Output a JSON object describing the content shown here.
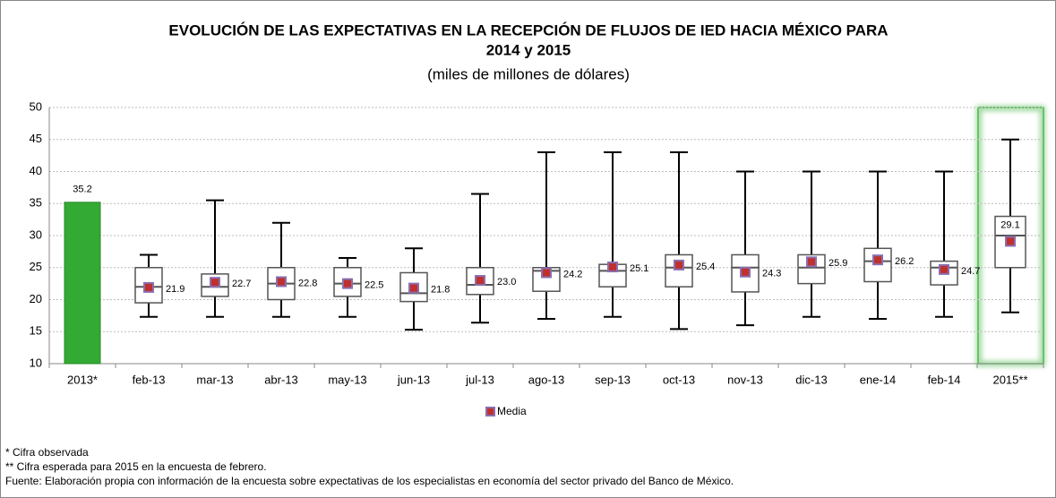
{
  "chart_data": {
    "type": "box",
    "title": [
      "EVOLUCIÓN DE LAS EXPECTATIVAS EN LA RECEPCIÓN DE FLUJOS DE IED HACIA MÉXICO PARA",
      "2014 y 2015"
    ],
    "subtitle": "(miles de millones de dólares)",
    "categories": [
      "2013*",
      "feb-13",
      "mar-13",
      "abr-13",
      "may-13",
      "jun-13",
      "jul-13",
      "ago-13",
      "sep-13",
      "oct-13",
      "nov-13",
      "dic-13",
      "ene-14",
      "feb-14",
      "2015**"
    ],
    "bar": {
      "color": "#33aa33",
      "values": [
        35.2,
        null,
        null,
        null,
        null,
        null,
        null,
        null,
        null,
        null,
        null,
        null,
        null,
        null,
        null
      ]
    },
    "min": [
      null,
      17.3,
      17.3,
      17.3,
      17.3,
      15.3,
      16.4,
      17,
      17.3,
      15.4,
      16,
      17.3,
      17,
      17.3,
      18
    ],
    "q1": [
      null,
      19.5,
      20.5,
      20,
      20.5,
      19.7,
      20.8,
      21.3,
      22,
      22,
      21.2,
      22.5,
      22.8,
      22.3,
      25
    ],
    "median": [
      null,
      22,
      22,
      22.5,
      22.5,
      21,
      22.3,
      24.5,
      24.5,
      25,
      25,
      25,
      26,
      25,
      30
    ],
    "q3": [
      null,
      25,
      24,
      25,
      25,
      24.2,
      25,
      25,
      25.5,
      27,
      27,
      27,
      28,
      26,
      33
    ],
    "max": [
      null,
      27,
      35.5,
      32,
      26.5,
      28,
      36.5,
      43,
      43,
      43,
      40,
      40,
      40,
      40,
      45
    ],
    "series": [
      {
        "name": "Media",
        "color": "#c0302c",
        "values": [
          null,
          21.9,
          22.7,
          22.8,
          22.5,
          21.8,
          23.0,
          24.2,
          25.1,
          25.4,
          24.3,
          25.9,
          26.2,
          24.7,
          29.1
        ],
        "value_labels": [
          null,
          "21.9",
          "22.7",
          "22.8",
          "22.5",
          "21.8",
          "23.0",
          "24.2",
          "25.1",
          "25.4",
          "24.3",
          "25.9",
          "26.2",
          "24.7",
          "29.1"
        ]
      }
    ],
    "ylim": [
      10,
      50
    ],
    "yticks": [
      10,
      15,
      20,
      25,
      30,
      35,
      40,
      45,
      50
    ],
    "grid": true,
    "legend": "bottom",
    "notes": [
      "* Cifra observada",
      "** Cifra esperada para 2015 en la encuesta de febrero.",
      "Fuente: Elaboración propia con información de la encuesta sobre expectativas de los especialistas en economía del sector privado del Banco de México."
    ]
  }
}
